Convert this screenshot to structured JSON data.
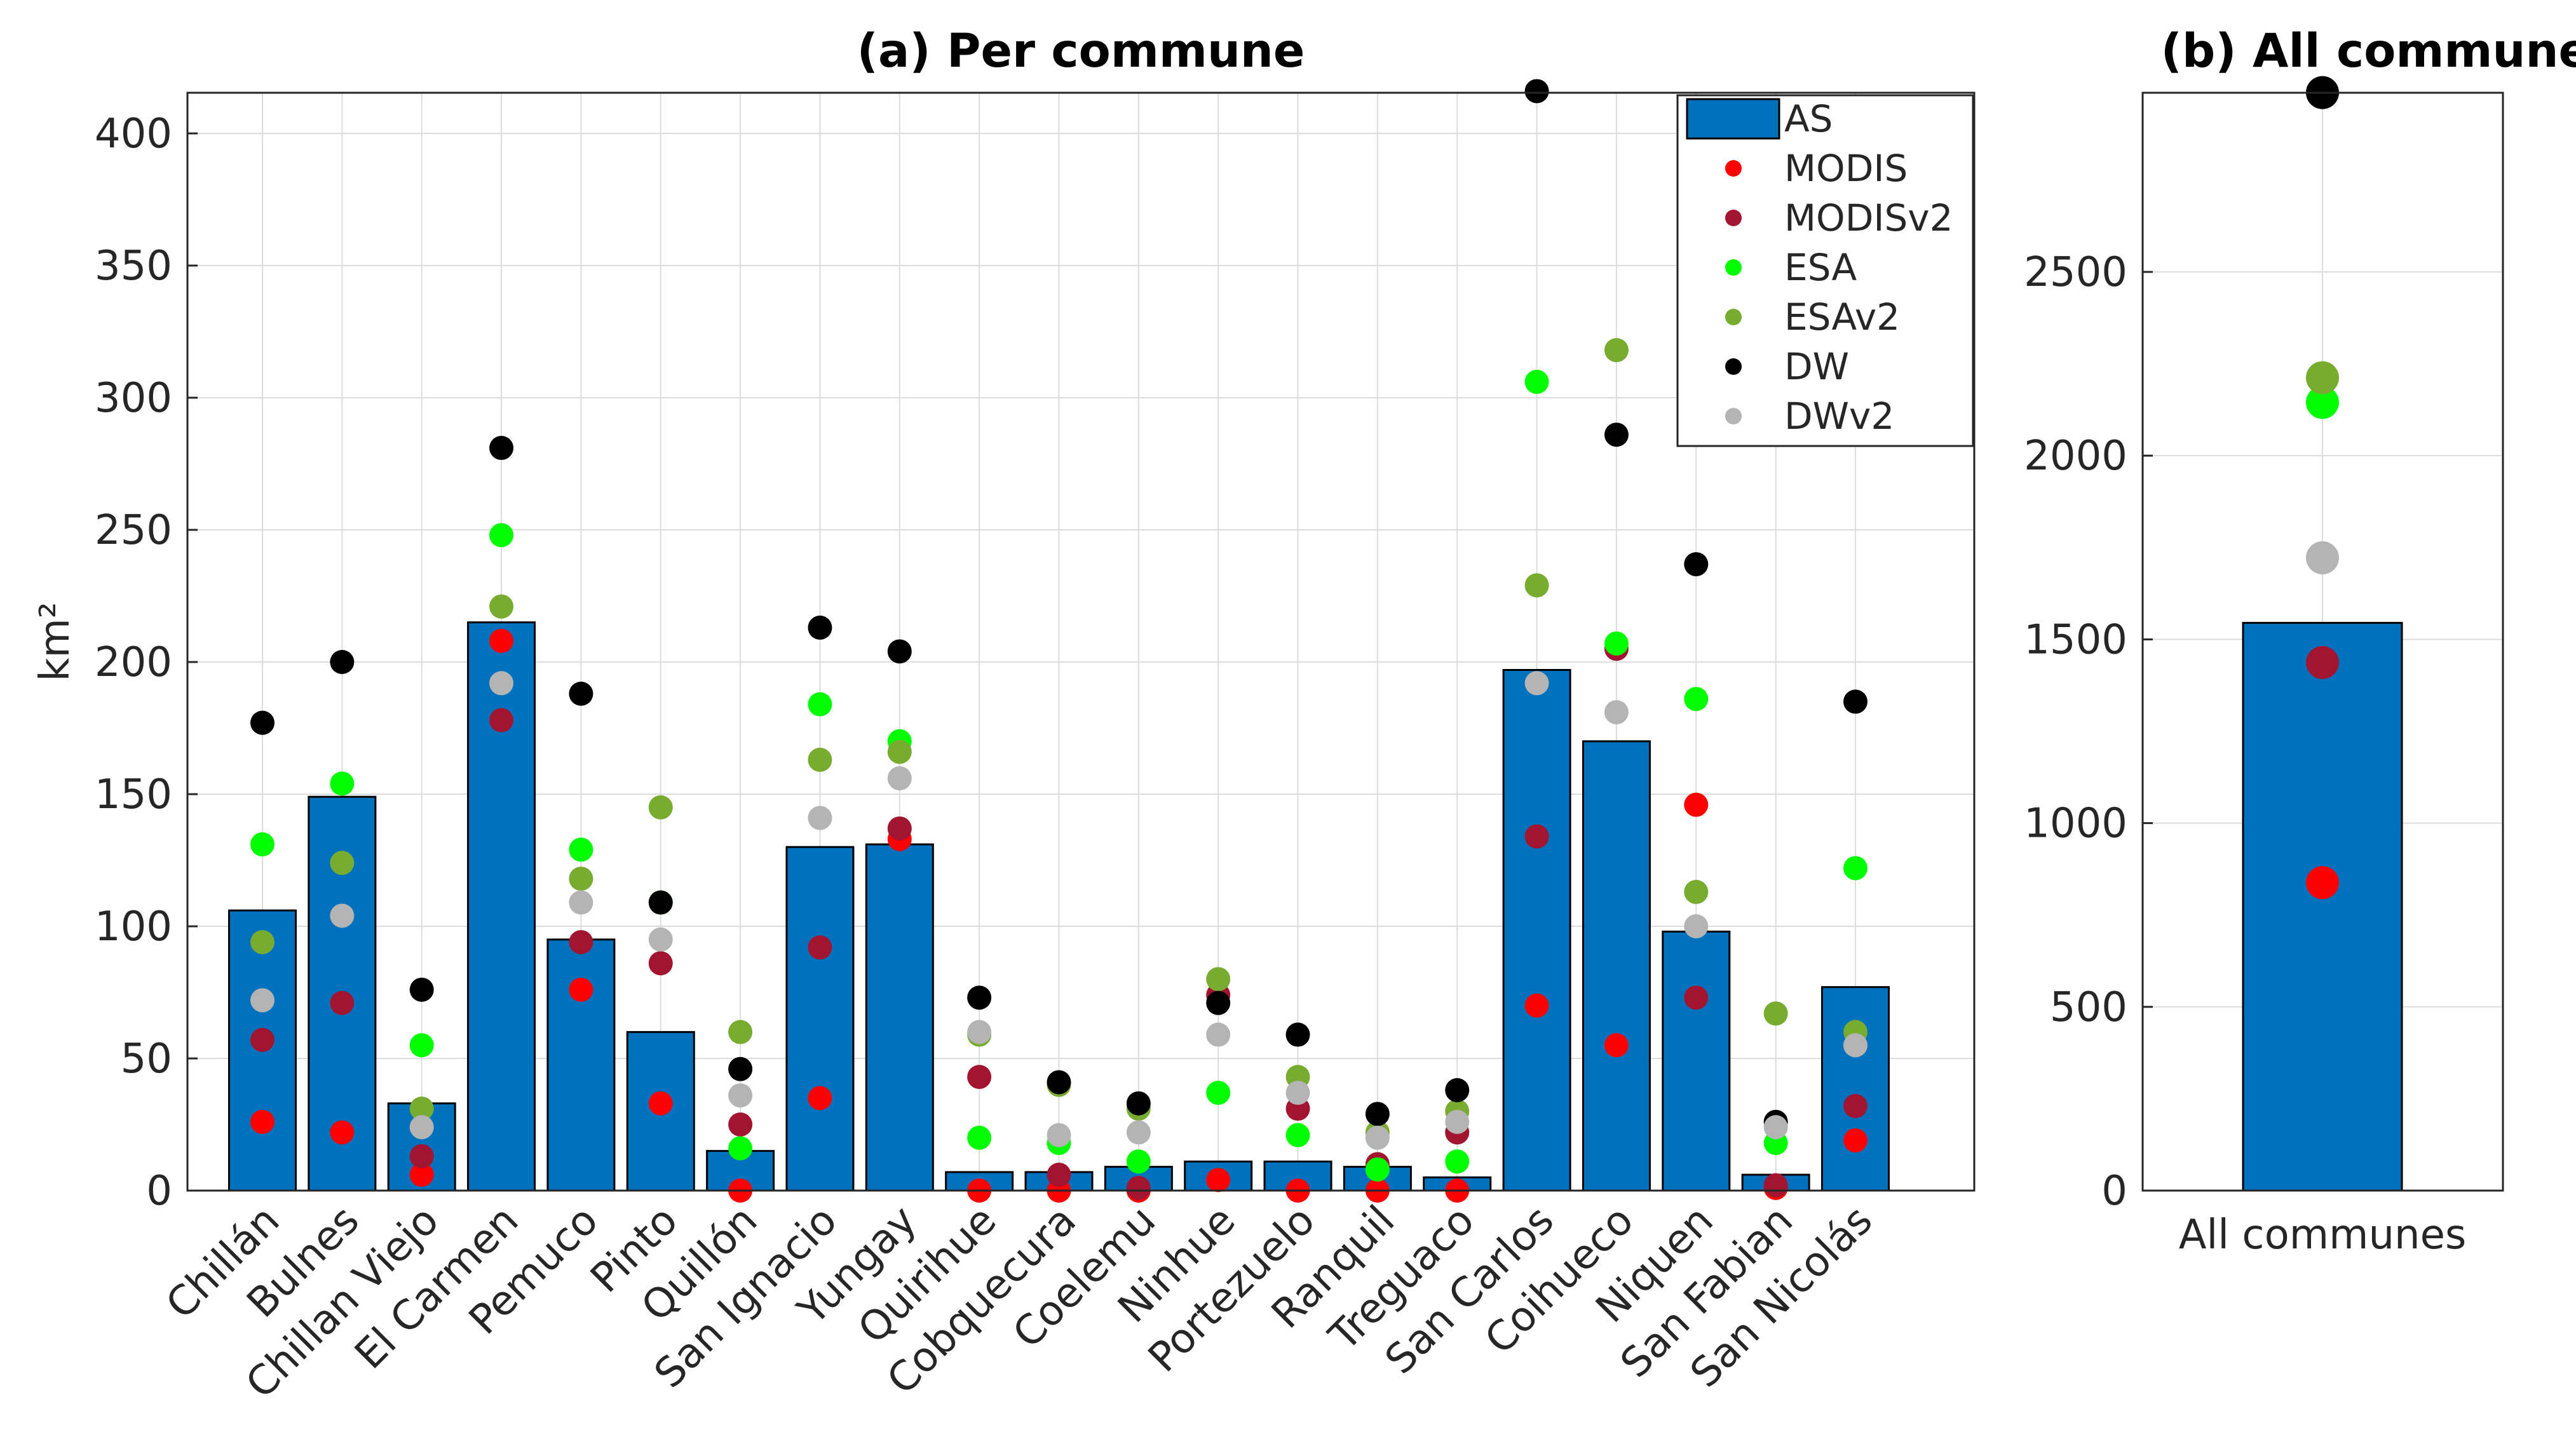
{
  "chart_data": [
    {
      "type": "bar",
      "title": "(a) Per commune",
      "xlabel": "",
      "ylabel": "km²",
      "ylim": [
        0,
        400
      ],
      "yticks": [
        0,
        50,
        100,
        150,
        200,
        250,
        300,
        350,
        400
      ],
      "grid": true,
      "legend_position": "top-right",
      "categories": [
        "Chillán",
        "Bulnes",
        "Chillan Viejo",
        "El Carmen",
        "Pemuco",
        "Pinto",
        "Quillón",
        "San Ignacio",
        "Yungay",
        "Quirihue",
        "Cobquecura",
        "Coelemu",
        "Ninhue",
        "Portezuelo",
        "Ranquil",
        "Treguaco",
        "San Carlos",
        "Coihueco",
        "Niquen",
        "San Fabian",
        "San Nicolás"
      ],
      "bar_series": {
        "name": "AS",
        "color": "#0072bd",
        "values": [
          106,
          149,
          33,
          215,
          95,
          60,
          15,
          130,
          131,
          7,
          7,
          9,
          11,
          11,
          9,
          5,
          197,
          170,
          98,
          6,
          77
        ]
      },
      "point_series": [
        {
          "name": "MODIS",
          "color": "#ff0000",
          "values": [
            26,
            22,
            6,
            208,
            76,
            33,
            0,
            35,
            133,
            0,
            0,
            0,
            4,
            0,
            0,
            0,
            70,
            55,
            146,
            1,
            19
          ]
        },
        {
          "name": "MODISv2",
          "color": "#a2142f",
          "values": [
            57,
            71,
            13,
            178,
            94,
            86,
            25,
            92,
            137,
            43,
            6,
            1,
            74,
            31,
            10,
            22,
            134,
            205,
            73,
            2,
            32
          ]
        },
        {
          "name": "ESA",
          "color": "#00ff00",
          "values": [
            131,
            154,
            55,
            248,
            129,
            109,
            16,
            184,
            170,
            20,
            18,
            11,
            37,
            21,
            8,
            11,
            306,
            207,
            186,
            18,
            122
          ]
        },
        {
          "name": "ESAv2",
          "color": "#77ac30",
          "values": [
            94,
            124,
            31,
            221,
            118,
            145,
            60,
            163,
            166,
            59,
            40,
            31,
            80,
            43,
            22,
            30,
            229,
            318,
            113,
            67,
            60
          ]
        },
        {
          "name": "DW",
          "color": "#000000",
          "values": [
            177,
            200,
            76,
            281,
            188,
            109,
            46,
            213,
            204,
            73,
            41,
            33,
            71,
            59,
            29,
            38,
            416,
            286,
            237,
            26,
            185
          ]
        },
        {
          "name": "DWv2",
          "color": "#b4b4b4",
          "values": [
            72,
            104,
            24,
            192,
            109,
            95,
            36,
            141,
            156,
            60,
            21,
            22,
            59,
            37,
            20,
            26,
            192,
            181,
            100,
            24,
            55
          ]
        }
      ]
    },
    {
      "type": "bar",
      "title": "(b) All communes",
      "xlabel": "",
      "ylabel": "",
      "ylim": [
        0,
        3000
      ],
      "yticks": [
        0,
        500,
        1000,
        1500,
        2000,
        2500
      ],
      "grid": true,
      "categories": [
        "All communes"
      ],
      "bar_series": {
        "name": "AS",
        "color": "#0072bd",
        "values": [
          1545
        ]
      },
      "point_series": [
        {
          "name": "MODIS",
          "color": "#ff0000",
          "values": [
            838
          ]
        },
        {
          "name": "MODISv2",
          "color": "#a2142f",
          "values": [
            1437
          ]
        },
        {
          "name": "ESA",
          "color": "#00ff00",
          "values": [
            2145
          ]
        },
        {
          "name": "ESAv2",
          "color": "#77ac30",
          "values": [
            2212
          ]
        },
        {
          "name": "DW",
          "color": "#000000",
          "values": [
            2988
          ]
        },
        {
          "name": "DWv2",
          "color": "#b4b4b4",
          "values": [
            1722
          ]
        }
      ]
    }
  ]
}
